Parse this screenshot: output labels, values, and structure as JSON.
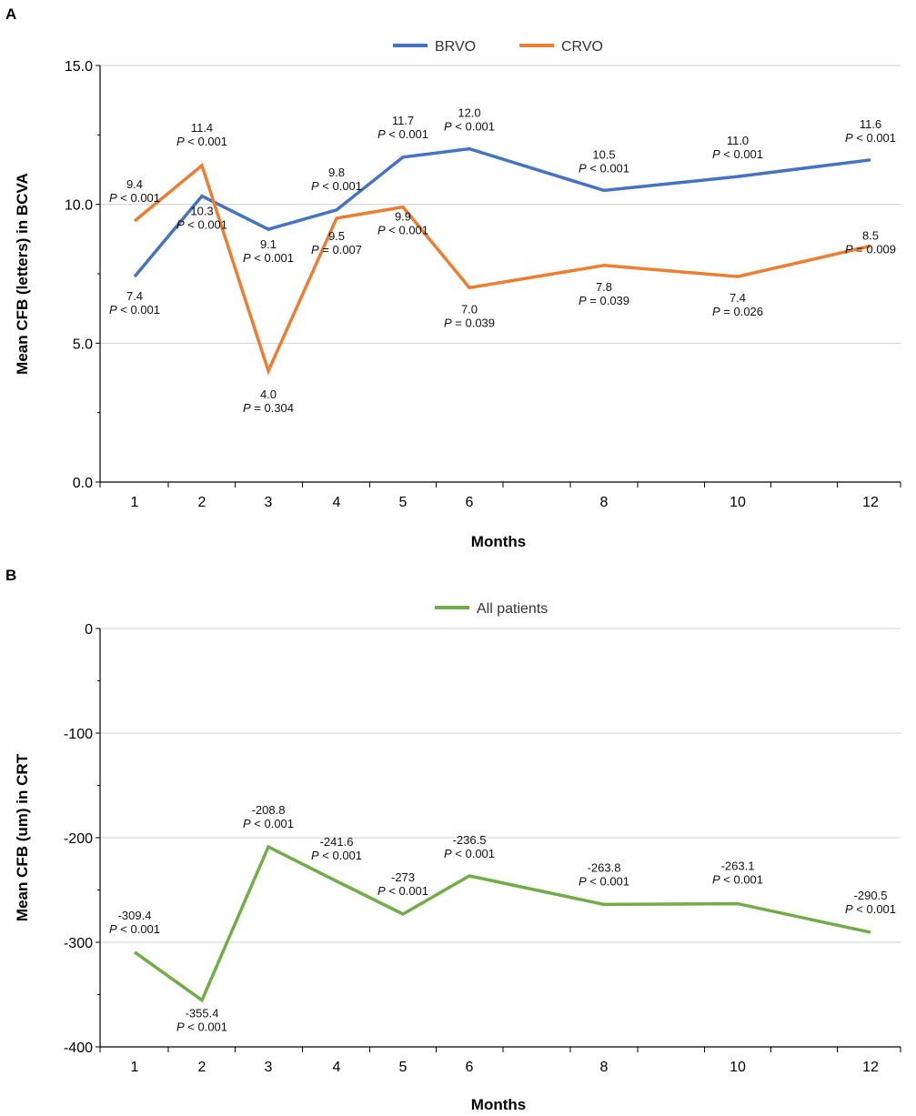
{
  "chart_data": [
    {
      "panel": "A",
      "type": "line",
      "ylabel": "Mean CFB (letters) in BCVA",
      "xlabel": "Months",
      "ylim": [
        0,
        15
      ],
      "yticks": [
        "0.0",
        "5.0",
        "10.0",
        "15.0"
      ],
      "grid": true,
      "legend_position": "top-center",
      "categories": [
        "1",
        "2",
        "3",
        "4",
        "5",
        "6",
        "8",
        "10",
        "12"
      ],
      "series": [
        {
          "name": "BRVO",
          "color": "#4472c4",
          "values": [
            7.4,
            10.3,
            9.1,
            9.8,
            11.7,
            12.0,
            10.5,
            11.0,
            11.6
          ],
          "labels": [
            [
              "7.4",
              "P",
              " < 0.001"
            ],
            [
              "10.3",
              "P",
              " < 0.001"
            ],
            [
              "9.1",
              "P",
              " < 0.001"
            ],
            [
              "9.8",
              "P",
              " < 0.001"
            ],
            [
              "11.7",
              "P",
              " < 0.001"
            ],
            [
              "12.0",
              "P",
              " < 0.001"
            ],
            [
              "10.5",
              "P",
              " < 0.001"
            ],
            [
              "11.0",
              "P",
              " < 0.001"
            ],
            [
              "11.6",
              "P",
              " < 0.001"
            ]
          ]
        },
        {
          "name": "CRVO",
          "color": "#ed7d31",
          "values": [
            9.4,
            11.4,
            4.0,
            9.5,
            9.9,
            7.0,
            7.8,
            7.4,
            8.5
          ],
          "labels": [
            [
              "9.4",
              "P",
              " < 0.001"
            ],
            [
              "11.4",
              "P",
              " < 0.001"
            ],
            [
              "4.0",
              "P",
              " = 0.304"
            ],
            [
              "9.5",
              "P",
              " = 0.007"
            ],
            [
              "9.9",
              "P",
              " < 0.001"
            ],
            [
              "7.0",
              "P",
              " = 0.039"
            ],
            [
              "7.8",
              "P",
              " = 0.039"
            ],
            [
              "7.4",
              "P",
              " = 0.026"
            ],
            [
              "8.5",
              "P",
              " = 0.009"
            ]
          ]
        }
      ]
    },
    {
      "panel": "B",
      "type": "line",
      "ylabel": "Mean CFB (um) in CRT",
      "xlabel": "Months",
      "ylim": [
        -400,
        0
      ],
      "yticks": [
        "-400",
        "-300",
        "-200",
        "-100",
        "0"
      ],
      "grid": true,
      "legend_position": "top-center",
      "categories": [
        "1",
        "2",
        "3",
        "4",
        "5",
        "6",
        "8",
        "10",
        "12"
      ],
      "series": [
        {
          "name": "All patients",
          "color": "#70ad47",
          "values": [
            -309.4,
            -355.4,
            -208.8,
            -241.6,
            -273,
            -236.5,
            -263.8,
            -263.1,
            -290.5
          ],
          "labels": [
            [
              "-309.4",
              "P",
              " < 0.001"
            ],
            [
              "-355.4",
              "P",
              " < 0.001"
            ],
            [
              "-208.8",
              "P",
              " < 0.001"
            ],
            [
              "-241.6",
              "P",
              " < 0.001"
            ],
            [
              "-273",
              "P",
              " < 0.001"
            ],
            [
              "-236.5",
              "P",
              " < 0.001"
            ],
            [
              "-263.8",
              "P",
              " < 0.001"
            ],
            [
              "-263.1",
              "P",
              " < 0.001"
            ],
            [
              "-290.5",
              "P",
              " < 0.001"
            ]
          ]
        }
      ]
    }
  ]
}
